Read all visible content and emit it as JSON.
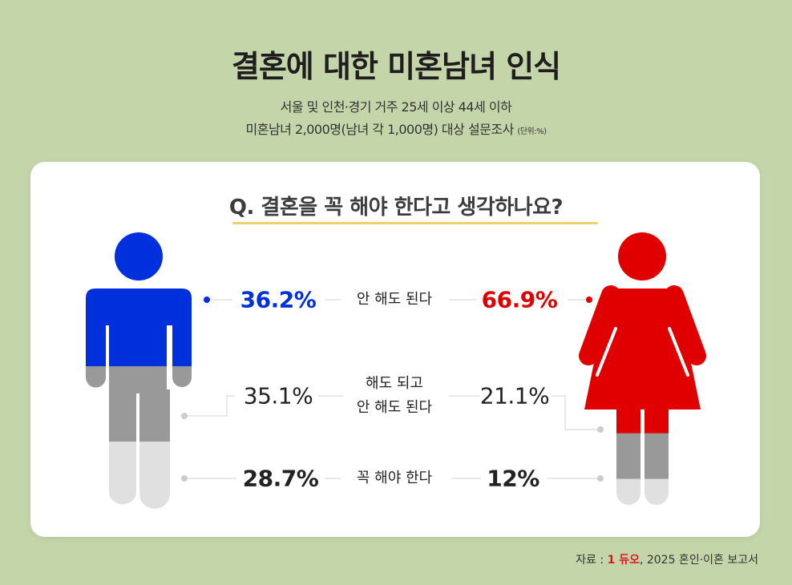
{
  "header": {
    "title": "결혼에 대한 미혼남녀 인식",
    "subtitle_line1": "서울 및 인천·경기 거주 25세 이상 44세 이하",
    "subtitle_line2": "미혼남녀 2,000명(남녀 각 1,000명) 대상 설문조사",
    "unit": "(단위:%)"
  },
  "question": "Q. 결혼을 꼭 해야 한다고 생각하나요?",
  "chart_data": {
    "type": "table",
    "categories": [
      "안 해도 된다",
      "해도 되고 안 해도 된다",
      "꼭 해야 한다"
    ],
    "category_labels": [
      [
        "안 해도 된다"
      ],
      [
        "해도 되고",
        "안 해도 된다"
      ],
      [
        "꼭 해야 한다"
      ]
    ],
    "series": [
      {
        "group": "male",
        "values": [
          36.2,
          35.1,
          28.7
        ],
        "labels": [
          "36.2%",
          "35.1%",
          "28.7%"
        ],
        "colors": [
          "#0030dc",
          "#999999",
          "#e0e0e0"
        ]
      },
      {
        "group": "female",
        "values": [
          66.9,
          21.1,
          12
        ],
        "labels": [
          "66.9%",
          "21.1%",
          "12%"
        ],
        "colors": [
          "#e00000",
          "#999999",
          "#e0e0e0"
        ]
      }
    ]
  },
  "source": {
    "prefix": "자료 :",
    "logo": "듀오",
    "text": ", 2025 혼인·이혼 보고서"
  }
}
